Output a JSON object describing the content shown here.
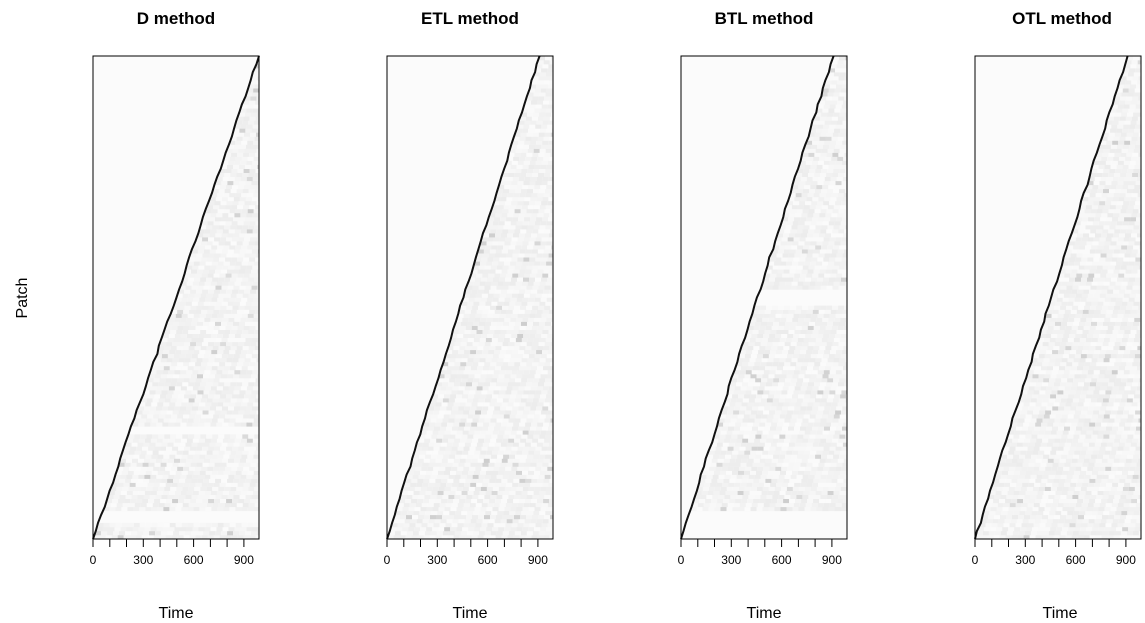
{
  "figure": {
    "ylabel": "Patch"
  },
  "chart_data": [
    {
      "type": "heatmap",
      "title": "D method",
      "xlabel": "Time",
      "ylabel": "Patch",
      "xlim": [
        0,
        990
      ],
      "xtick_labels": [
        "0",
        "300",
        "600",
        "900"
      ],
      "xtick_minor": [
        0,
        100,
        200,
        300,
        400,
        500,
        600,
        700,
        800,
        900,
        1000
      ],
      "front": {
        "t_start": 0,
        "t_end": 990,
        "patch_start": 0,
        "patch_end": 1
      },
      "blank_bands": [
        {
          "y0": 0.035,
          "y1": 0.055
        },
        {
          "y0": 0.215,
          "y1": 0.235
        }
      ],
      "shading": "light-grey"
    },
    {
      "type": "heatmap",
      "title": "ETL method",
      "xlabel": "Time",
      "ylabel": "",
      "xlim": [
        0,
        990
      ],
      "xtick_labels": [
        "0",
        "300",
        "600",
        "900"
      ],
      "xtick_minor": [
        0,
        100,
        200,
        300,
        400,
        500,
        600,
        700,
        800,
        900,
        1000
      ],
      "front": {
        "t_start": 0,
        "t_end": 910,
        "patch_start": 0,
        "patch_end": 1
      },
      "blank_bands": [],
      "shading": "light-grey"
    },
    {
      "type": "heatmap",
      "title": "BTL method",
      "xlabel": "Time",
      "ylabel": "",
      "xlim": [
        0,
        990
      ],
      "xtick_labels": [
        "0",
        "300",
        "600",
        "900"
      ],
      "xtick_minor": [
        0,
        100,
        200,
        300,
        400,
        500,
        600,
        700,
        800,
        900,
        1000
      ],
      "front": {
        "t_start": 0,
        "t_end": 910,
        "patch_start": 0,
        "patch_end": 1
      },
      "blank_bands": [
        {
          "y0": 0.0,
          "y1": 0.06
        },
        {
          "y0": 0.48,
          "y1": 0.52
        }
      ],
      "shading": "light-grey"
    },
    {
      "type": "heatmap",
      "title": "OTL method",
      "xlabel": "Time",
      "ylabel": "",
      "xlim": [
        0,
        990
      ],
      "xtick_labels": [
        "0",
        "300",
        "600",
        "900"
      ],
      "xtick_minor": [
        0,
        100,
        200,
        300,
        400,
        500,
        600,
        700,
        800,
        900,
        1000
      ],
      "front": {
        "t_start": 0,
        "t_end": 910,
        "patch_start": 0,
        "patch_end": 1
      },
      "blank_bands": [],
      "shading": "light-grey"
    }
  ]
}
